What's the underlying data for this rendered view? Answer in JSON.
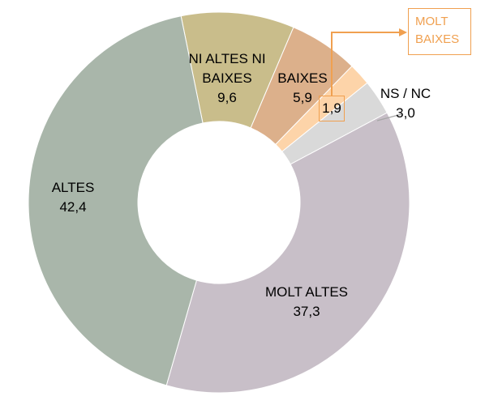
{
  "chart_data": {
    "type": "donut",
    "categories": [
      "NI ALTES NI BAIXES",
      "BAIXES",
      "MOLT BAIXES",
      "NS / NC",
      "MOLT ALTES",
      "ALTES"
    ],
    "values": [
      9.6,
      5.9,
      1.9,
      3.0,
      37.3,
      42.4
    ],
    "value_labels": [
      "9,6",
      "5,9",
      "1,9",
      "3,0",
      "37,3",
      "42,4"
    ],
    "colors": [
      "#c9bd8b",
      "#dcb08b",
      "#fdd4a9",
      "#d9d9d9",
      "#c8bfc8",
      "#a9b6aa"
    ]
  }
}
